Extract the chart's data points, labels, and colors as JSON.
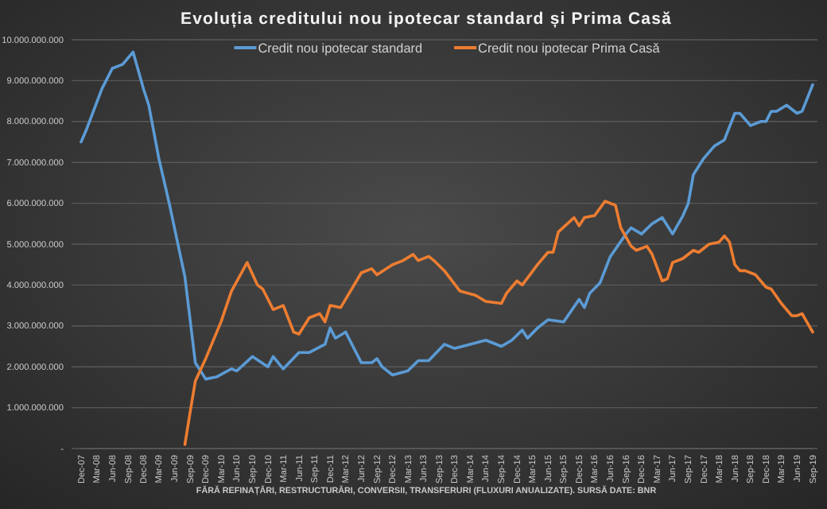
{
  "chart_data": {
    "type": "line",
    "title": "Evoluția creditului nou ipotecar standard și Prima Casă",
    "annotations": [
      "FĂRĂ REFINAȚĂRI, RESTRUCTURĂRI, CONVERSII, TRANSFERURI (FLUXURI ANUALIZATE). SURSĂ DATE: BNR"
    ],
    "legend": "top",
    "grid": "y",
    "marker": "none",
    "line_style": "solid",
    "xlim": [
      "2007-12",
      "2019-09"
    ],
    "xticks": [
      {
        "value": "2007-12",
        "label": "Dec-07"
      },
      {
        "value": "2008-03",
        "label": "Mar-08"
      },
      {
        "value": "2008-06",
        "label": "Jun-08"
      },
      {
        "value": "2008-09",
        "label": "Sep-08"
      },
      {
        "value": "2008-12",
        "label": "Dec-08"
      },
      {
        "value": "2009-03",
        "label": "Mar-09"
      },
      {
        "value": "2009-06",
        "label": "Jun-09"
      },
      {
        "value": "2009-09",
        "label": "Sep-09"
      },
      {
        "value": "2009-12",
        "label": "Dec-09"
      },
      {
        "value": "2010-03",
        "label": "Mar-10"
      },
      {
        "value": "2010-06",
        "label": "Jun-10"
      },
      {
        "value": "2010-09",
        "label": "Sep-10"
      },
      {
        "value": "2010-12",
        "label": "Dec-10"
      },
      {
        "value": "2011-03",
        "label": "Mar-11"
      },
      {
        "value": "2011-06",
        "label": "Jun-11"
      },
      {
        "value": "2011-09",
        "label": "Sep-11"
      },
      {
        "value": "2011-12",
        "label": "Dec-11"
      },
      {
        "value": "2012-03",
        "label": "Mar-12"
      },
      {
        "value": "2012-06",
        "label": "Jun-12"
      },
      {
        "value": "2012-09",
        "label": "Sep-12"
      },
      {
        "value": "2012-12",
        "label": "Dec-12"
      },
      {
        "value": "2013-03",
        "label": "Mar-13"
      },
      {
        "value": "2013-06",
        "label": "Jun-13"
      },
      {
        "value": "2013-09",
        "label": "Sep-13"
      },
      {
        "value": "2013-12",
        "label": "Dec-13"
      },
      {
        "value": "2014-03",
        "label": "Mar-14"
      },
      {
        "value": "2014-06",
        "label": "Jun-14"
      },
      {
        "value": "2014-09",
        "label": "Sep-14"
      },
      {
        "value": "2014-12",
        "label": "Dec-14"
      },
      {
        "value": "2015-03",
        "label": "Mar-15"
      },
      {
        "value": "2015-06",
        "label": "Jun-15"
      },
      {
        "value": "2015-09",
        "label": "Sep-15"
      },
      {
        "value": "2015-12",
        "label": "Dec-15"
      },
      {
        "value": "2016-03",
        "label": "Mar-16"
      },
      {
        "value": "2016-06",
        "label": "Jun-16"
      },
      {
        "value": "2016-09",
        "label": "Sep-16"
      },
      {
        "value": "2016-12",
        "label": "Dec-16"
      },
      {
        "value": "2017-03",
        "label": "Mar-17"
      },
      {
        "value": "2017-06",
        "label": "Jun-17"
      },
      {
        "value": "2017-09",
        "label": "Sep-17"
      },
      {
        "value": "2017-12",
        "label": "Dec-17"
      },
      {
        "value": "2018-03",
        "label": "Mar-18"
      },
      {
        "value": "2018-06",
        "label": "Jun-18"
      },
      {
        "value": "2018-09",
        "label": "Sep-18"
      },
      {
        "value": "2018-12",
        "label": "Dec-18"
      },
      {
        "value": "2019-03",
        "label": "Mar-19"
      },
      {
        "value": "2019-06",
        "label": "Jun-19"
      },
      {
        "value": "2019-09",
        "label": "Sep-19"
      }
    ],
    "ylim": [
      0,
      10000000000
    ],
    "yticks": [
      {
        "value": 0,
        "label": "-"
      },
      {
        "value": 1000000000,
        "label": "1.000.000.000"
      },
      {
        "value": 2000000000,
        "label": "2.000.000.000"
      },
      {
        "value": 3000000000,
        "label": "3.000.000.000"
      },
      {
        "value": 4000000000,
        "label": "4.000.000.000"
      },
      {
        "value": 5000000000,
        "label": "5.000.000.000"
      },
      {
        "value": 6000000000,
        "label": "6.000.000.000"
      },
      {
        "value": 7000000000,
        "label": "7.000.000.000"
      },
      {
        "value": 8000000000,
        "label": "8.000.000.000"
      },
      {
        "value": 9000000000,
        "label": "9.000.000.000"
      },
      {
        "value": 10000000000,
        "label": "10.000.000.000"
      }
    ],
    "series": [
      {
        "name": "Credit nou ipotecar standard",
        "color": "#5b9bd5",
        "x": [
          "2007-12",
          "2008-01",
          "2008-04",
          "2008-06",
          "2008-08",
          "2008-10",
          "2008-12",
          "2009-01",
          "2009-03",
          "2009-05",
          "2009-08",
          "2009-10",
          "2009-12",
          "2010-02",
          "2010-05",
          "2010-06",
          "2010-09",
          "2010-12",
          "2011-01",
          "2011-03",
          "2011-06",
          "2011-08",
          "2011-11",
          "2011-12",
          "2012-01",
          "2012-03",
          "2012-06",
          "2012-08",
          "2012-09",
          "2012-10",
          "2012-12",
          "2013-03",
          "2013-05",
          "2013-07",
          "2013-10",
          "2013-12",
          "2014-03",
          "2014-06",
          "2014-09",
          "2014-11",
          "2015-01",
          "2015-02",
          "2015-04",
          "2015-06",
          "2015-09",
          "2015-12",
          "2016-01",
          "2016-02",
          "2016-04",
          "2016-06",
          "2016-09",
          "2016-10",
          "2016-12",
          "2017-02",
          "2017-04",
          "2017-06",
          "2017-08",
          "2017-09",
          "2017-10",
          "2017-12",
          "2018-02",
          "2018-04",
          "2018-06",
          "2018-07",
          "2018-09",
          "2018-11",
          "2018-12",
          "2019-01",
          "2019-02",
          "2019-04",
          "2019-06",
          "2019-07",
          "2019-09"
        ],
        "values": [
          7500000000,
          7800000000,
          8800000000,
          9300000000,
          9400000000,
          9700000000,
          8800000000,
          8400000000,
          7100000000,
          6000000000,
          4200000000,
          2100000000,
          1700000000,
          1750000000,
          1950000000,
          1900000000,
          2250000000,
          2000000000,
          2250000000,
          1950000000,
          2350000000,
          2350000000,
          2550000000,
          2950000000,
          2700000000,
          2850000000,
          2100000000,
          2100000000,
          2200000000,
          2000000000,
          1800000000,
          1900000000,
          2150000000,
          2150000000,
          2550000000,
          2450000000,
          2550000000,
          2650000000,
          2500000000,
          2650000000,
          2900000000,
          2700000000,
          2950000000,
          3150000000,
          3100000000,
          3650000000,
          3450000000,
          3800000000,
          4050000000,
          4700000000,
          5250000000,
          5400000000,
          5250000000,
          5500000000,
          5650000000,
          5250000000,
          5700000000,
          6000000000,
          6700000000,
          7100000000,
          7400000000,
          7550000000,
          8200000000,
          8200000000,
          7900000000,
          8000000000,
          8000000000,
          8250000000,
          8250000000,
          8400000000,
          8200000000,
          8250000000,
          8900000000
        ]
      },
      {
        "name": "Credit nou ipotecar Prima Casă",
        "color": "#ed7d31",
        "x": [
          "2009-08",
          "2009-09",
          "2009-10",
          "2009-12",
          "2010-03",
          "2010-05",
          "2010-08",
          "2010-10",
          "2010-11",
          "2011-01",
          "2011-03",
          "2011-05",
          "2011-06",
          "2011-08",
          "2011-10",
          "2011-11",
          "2011-12",
          "2012-02",
          "2012-06",
          "2012-08",
          "2012-09",
          "2012-12",
          "2013-02",
          "2013-04",
          "2013-05",
          "2013-07",
          "2013-08",
          "2013-10",
          "2014-01",
          "2014-04",
          "2014-06",
          "2014-09",
          "2014-10",
          "2014-12",
          "2015-01",
          "2015-04",
          "2015-06",
          "2015-07",
          "2015-08",
          "2015-11",
          "2015-12",
          "2016-01",
          "2016-03",
          "2016-05",
          "2016-07",
          "2016-08",
          "2016-10",
          "2016-11",
          "2017-01",
          "2017-02",
          "2017-04",
          "2017-05",
          "2017-06",
          "2017-08",
          "2017-10",
          "2017-11",
          "2018-01",
          "2018-03",
          "2018-04",
          "2018-05",
          "2018-06",
          "2018-07",
          "2018-08",
          "2018-10",
          "2018-12",
          "2019-01",
          "2019-03",
          "2019-05",
          "2019-06",
          "2019-07",
          "2019-09"
        ],
        "values": [
          100000000,
          900000000,
          1650000000,
          2200000000,
          3100000000,
          3850000000,
          4550000000,
          4000000000,
          3900000000,
          3400000000,
          3500000000,
          2850000000,
          2800000000,
          3200000000,
          3300000000,
          3100000000,
          3500000000,
          3450000000,
          4300000000,
          4400000000,
          4250000000,
          4500000000,
          4600000000,
          4750000000,
          4600000000,
          4700000000,
          4600000000,
          4350000000,
          3850000000,
          3750000000,
          3600000000,
          3550000000,
          3800000000,
          4100000000,
          4000000000,
          4500000000,
          4800000000,
          4800000000,
          5300000000,
          5650000000,
          5450000000,
          5650000000,
          5700000000,
          6050000000,
          5950000000,
          5400000000,
          4950000000,
          4850000000,
          4950000000,
          4750000000,
          4100000000,
          4150000000,
          4550000000,
          4650000000,
          4850000000,
          4800000000,
          5000000000,
          5050000000,
          5200000000,
          5050000000,
          4500000000,
          4350000000,
          4350000000,
          4250000000,
          3950000000,
          3900000000,
          3550000000,
          3250000000,
          3250000000,
          3300000000,
          2850000000
        ]
      }
    ]
  }
}
